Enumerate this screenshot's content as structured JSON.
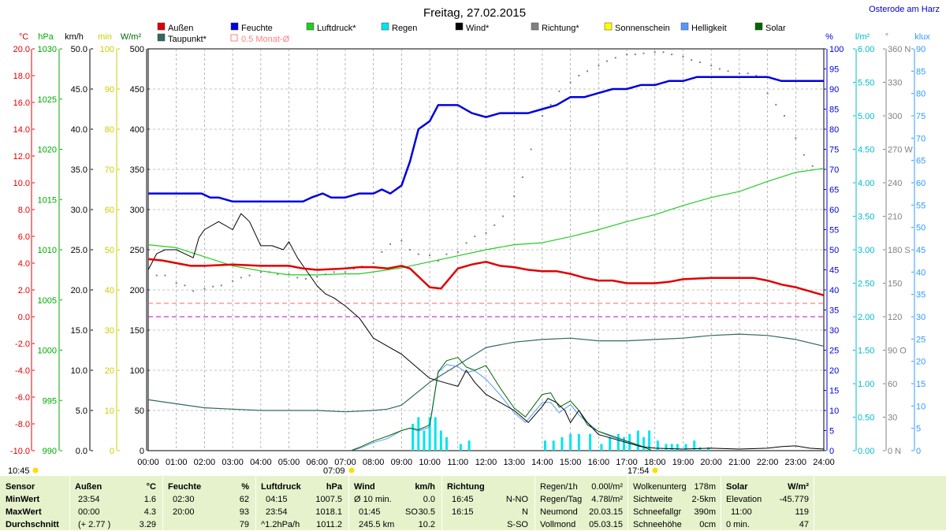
{
  "title": "Freitag, 27.02.2015",
  "location": "Osterode am Harz",
  "legend": [
    {
      "label": "Außen",
      "color": "#e00000"
    },
    {
      "label": "Feuchte",
      "color": "#0000e0"
    },
    {
      "label": "Luftdruck*",
      "color": "#22cc22"
    },
    {
      "label": "Regen",
      "color": "#00e5ee"
    },
    {
      "label": "Wind*",
      "color": "#000000"
    },
    {
      "label": "Richtung*",
      "color": "#808080"
    },
    {
      "label": "Sonnenschein",
      "color": "#ffff00"
    },
    {
      "label": "Helligkeit",
      "color": "#5599ff"
    },
    {
      "label": "Solar",
      "color": "#006600"
    },
    {
      "label": "Taupunkt*",
      "color": "#336666"
    },
    {
      "label": "0.5 Monat-Ø",
      "color": "#ff8080"
    }
  ],
  "axis_units": {
    "temp": "°C",
    "pressure": "hPa",
    "wind": "km/h",
    "sun": "min",
    "solar": "W/m²",
    "humidity": "%",
    "rain": "l/m²",
    "direction": "°",
    "brightness": "klux"
  },
  "time_marks": {
    "start": "10:45",
    "sunrise": "07:09",
    "sunset": "17:54"
  },
  "chart_data": {
    "type": "line",
    "title": "Freitag, 27.02.2015",
    "x_ticks": [
      "00:00",
      "01:00",
      "02:00",
      "03:00",
      "04:00",
      "05:00",
      "06:00",
      "07:00",
      "08:00",
      "09:00",
      "10:00",
      "11:00",
      "12:00",
      "13:00",
      "14:00",
      "15:00",
      "16:00",
      "17:00",
      "18:00",
      "19:00",
      "20:00",
      "21:00",
      "22:00",
      "23:00",
      "24:00"
    ],
    "axes": {
      "temp": {
        "ticks": [
          "20.0",
          "18.0",
          "16.0",
          "14.0",
          "12.0",
          "10.0",
          "8.0",
          "6.0",
          "4.0",
          "2.0",
          "0.0",
          "-2.0",
          "-4.0",
          "-6.0",
          "-8.0",
          "-10.0"
        ],
        "range": [
          -10,
          20
        ]
      },
      "pressure": {
        "ticks": [
          "1030",
          "1025",
          "1020",
          "1015",
          "1010",
          "1005",
          "1000",
          "995",
          "990"
        ],
        "range": [
          990,
          1030
        ]
      },
      "wind": {
        "ticks": [
          "50.0",
          "45.0",
          "40.0",
          "35.0",
          "30.0",
          "25.0",
          "20.0",
          "15.0",
          "10.0",
          "5.0",
          "0.0"
        ],
        "range": [
          0,
          50
        ]
      },
      "sun": {
        "ticks": [
          "100",
          "90",
          "80",
          "70",
          "60",
          "50",
          "40",
          "30",
          "20",
          "10",
          "0"
        ],
        "range": [
          0,
          100
        ]
      },
      "solar": {
        "ticks": [
          "500",
          "450",
          "400",
          "350",
          "300",
          "250",
          "200",
          "150",
          "100",
          "50",
          "0"
        ],
        "range": [
          0,
          500
        ]
      },
      "humidity": {
        "ticks": [
          "100",
          "95",
          "90",
          "85",
          "80",
          "75",
          "70",
          "65",
          "60",
          "55",
          "50",
          "45",
          "40",
          "35",
          "30",
          "25",
          "20",
          "15",
          "10",
          "5",
          "0"
        ],
        "range": [
          0,
          100
        ]
      },
      "rain": {
        "ticks": [
          "6.00",
          "5.50",
          "5.00",
          "4.50",
          "4.00",
          "3.50",
          "3.00",
          "2.50",
          "2.00",
          "1.50",
          "1.00",
          "0.50",
          "0.00"
        ],
        "range": [
          0,
          6
        ]
      },
      "direction": {
        "ticks": [
          "360 N",
          "330",
          "300",
          "270 W",
          "240",
          "210",
          "180 S",
          "150",
          "120",
          "90 O",
          "60",
          "30",
          "0 N"
        ],
        "range": [
          0,
          360
        ]
      },
      "brightness": {
        "ticks": [
          "90",
          "85",
          "80",
          "75",
          "70",
          "65",
          "60",
          "55",
          "50",
          "45",
          "40",
          "35",
          "30",
          "25",
          "20",
          "15",
          "10",
          "5",
          "0"
        ],
        "range": [
          0,
          90
        ]
      }
    },
    "series": [
      {
        "name": "Außen",
        "axis": "temp",
        "color": "#e00000",
        "width": 2.5,
        "x": [
          0,
          0.5,
          1,
          1.5,
          2,
          3,
          4,
          5,
          5.5,
          6,
          7,
          7.5,
          8,
          8.5,
          9,
          9.3,
          10,
          10.4,
          11,
          11.5,
          12,
          12.5,
          13,
          13.5,
          14,
          14.5,
          15,
          15.5,
          16,
          16.5,
          17,
          18,
          18.5,
          19,
          20,
          21,
          21.5,
          22,
          22.5,
          23,
          23.5,
          24
        ],
        "y": [
          4.3,
          4.2,
          4.0,
          3.8,
          3.8,
          3.9,
          3.8,
          3.8,
          3.6,
          3.5,
          3.6,
          3.7,
          3.7,
          3.6,
          3.8,
          3.6,
          2.2,
          2.1,
          3.6,
          3.9,
          4.1,
          3.8,
          3.7,
          3.5,
          3.4,
          3.4,
          3.2,
          2.9,
          2.7,
          2.7,
          2.5,
          2.5,
          2.6,
          2.8,
          2.9,
          2.9,
          2.9,
          2.7,
          2.4,
          2.2,
          1.9,
          1.6
        ]
      },
      {
        "name": "Feuchte",
        "axis": "humidity",
        "color": "#0000e0",
        "width": 2.5,
        "x": [
          0,
          1,
          1.9,
          2.2,
          2.5,
          3,
          4,
          5.5,
          5.8,
          6.2,
          6.5,
          7,
          7.5,
          8,
          8.3,
          8.6,
          9,
          9.3,
          9.6,
          10,
          10.3,
          11,
          11.5,
          12,
          12.5,
          13,
          13.5,
          14,
          14.5,
          15,
          15.5,
          16,
          16.5,
          17,
          17.5,
          18,
          18.5,
          19,
          19.5,
          20,
          20.5,
          21,
          21.5,
          22,
          22.5,
          23,
          23.5,
          24
        ],
        "y": [
          64,
          64,
          64,
          63,
          63,
          62,
          62,
          62,
          63,
          64,
          63,
          63,
          64,
          64,
          65,
          64,
          66,
          72,
          80,
          82,
          86,
          86,
          84,
          83,
          84,
          84,
          84,
          85,
          86,
          88,
          88,
          89,
          90,
          90,
          91,
          91,
          92,
          92,
          93,
          93,
          93,
          93,
          93,
          93,
          92,
          92,
          92,
          92
        ]
      },
      {
        "name": "Luftdruck*",
        "axis": "pressure",
        "color": "#22cc22",
        "width": 1.2,
        "x": [
          0,
          1,
          2,
          3,
          4,
          5,
          6,
          7,
          7.5,
          8,
          9,
          10,
          11,
          12,
          13,
          14,
          15,
          16,
          17,
          18,
          19,
          20,
          21,
          22,
          23,
          23.5,
          24
        ],
        "y": [
          1010.5,
          1010.2,
          1009.3,
          1008.4,
          1007.9,
          1007.5,
          1007.5,
          1007.6,
          1007.6,
          1007.8,
          1008.2,
          1008.8,
          1009.4,
          1010.0,
          1010.5,
          1010.7,
          1011.3,
          1012.0,
          1012.8,
          1013.5,
          1014.4,
          1015.2,
          1015.8,
          1016.8,
          1017.7,
          1017.9,
          1018.1
        ]
      },
      {
        "name": "Taupunkt*",
        "axis": "temp",
        "color": "#336666",
        "width": 1.2,
        "x": [
          0,
          1,
          2,
          3,
          4,
          5,
          6,
          7,
          8,
          8.5,
          9,
          10,
          11,
          12,
          13,
          14,
          15,
          16,
          17,
          18,
          19,
          20,
          21,
          22,
          23,
          24
        ],
        "y": [
          -6.2,
          -6.5,
          -6.8,
          -6.9,
          -7.0,
          -7.0,
          -7.0,
          -7.1,
          -7.0,
          -6.9,
          -6.6,
          -4.9,
          -3.6,
          -2.3,
          -1.9,
          -1.7,
          -1.6,
          -1.8,
          -1.8,
          -1.7,
          -1.6,
          -1.4,
          -1.3,
          -1.4,
          -1.7,
          -2.2
        ]
      },
      {
        "name": "Wind*",
        "axis": "wind",
        "color": "#000000",
        "width": 1,
        "x": [
          0,
          0.3,
          0.6,
          1,
          1.3,
          1.6,
          1.8,
          2,
          2.5,
          3,
          3.3,
          3.6,
          4,
          4.4,
          4.8,
          5,
          5.3,
          5.6,
          6,
          6.3,
          6.6,
          7,
          7.5,
          8,
          8.5,
          9,
          9.5,
          10,
          10.5,
          11,
          11.3,
          11.6,
          12,
          12.5,
          13,
          13.5,
          14,
          14.2,
          14.5,
          14.8,
          15,
          15.3,
          15.6,
          16,
          16.5,
          17,
          17.5,
          18,
          19,
          20,
          21,
          22,
          22.5,
          23,
          23.5,
          24
        ],
        "y": [
          22.5,
          24.5,
          25,
          25,
          24.5,
          24,
          26.5,
          27.5,
          28.5,
          27.5,
          29.5,
          28.5,
          25.5,
          25.5,
          25,
          26,
          24,
          22.5,
          20.5,
          19.5,
          19,
          18,
          16.5,
          14,
          13,
          12,
          10.5,
          9,
          8.5,
          8,
          10,
          8.5,
          7,
          6,
          5,
          3.5,
          5.5,
          6.5,
          6,
          5,
          3.5,
          5,
          3.5,
          2,
          1.5,
          1,
          0.5,
          0.3,
          0.2,
          0.3,
          0.2,
          0.3,
          0.5,
          0.6,
          0.3,
          0.2
        ]
      },
      {
        "name": "Solar",
        "axis": "solar",
        "color": "#006600",
        "width": 1,
        "x": [
          7.2,
          7.5,
          8,
          8.5,
          9,
          9.3,
          9.6,
          10,
          10.3,
          10.6,
          11,
          11.3,
          11.6,
          12,
          12.5,
          13,
          13.4,
          14,
          14.3,
          14.6,
          15,
          15.3,
          15.6,
          16,
          16.5,
          17,
          17.5,
          17.9
        ],
        "y": [
          0,
          4,
          12,
          18,
          25,
          28,
          26,
          32,
          98,
          112,
          116,
          104,
          100,
          106,
          78,
          53,
          42,
          70,
          72,
          54,
          62,
          50,
          32,
          24,
          18,
          12,
          6,
          0
        ]
      },
      {
        "name": "Helligkeit",
        "axis": "brightness",
        "color": "#5599ff",
        "width": 1,
        "x": [
          7.2,
          7.5,
          8,
          8.5,
          9,
          9.3,
          9.6,
          10,
          10.3,
          10.6,
          11,
          11.3,
          11.6,
          12,
          12.5,
          13,
          13.4,
          14,
          14.3,
          14.6,
          15,
          15.3,
          15.6,
          16,
          16.5,
          17,
          17.5,
          17.9
        ],
        "y": [
          0,
          0.5,
          1.8,
          2.7,
          4.5,
          5,
          4.4,
          5.3,
          17.5,
          19.3,
          18.8,
          17.5,
          17.9,
          16,
          12.5,
          8.5,
          6.3,
          10.8,
          10.8,
          8.5,
          10.3,
          8,
          6.3,
          4.3,
          3,
          2,
          1,
          0
        ]
      },
      {
        "name": "Regen",
        "axis": "rain",
        "color": "#00e5ee",
        "type": "bar",
        "x": [
          9.4,
          9.6,
          9.8,
          10,
          10.2,
          10.4,
          10.6,
          11.1,
          11.4,
          14.1,
          14.4,
          14.7,
          15,
          15.3,
          15.7,
          16.1,
          16.4,
          16.7,
          16.9,
          17.1,
          17.4,
          17.6,
          17.8,
          18.1,
          18.4,
          18.6,
          18.8,
          19.1,
          19.4,
          19.6,
          19.9
        ],
        "y": [
          0.4,
          0.5,
          0.3,
          0.5,
          0.5,
          0.3,
          0.2,
          0.1,
          0.15,
          0.15,
          0.15,
          0.2,
          0.25,
          0.25,
          0.25,
          0.1,
          0.2,
          0.25,
          0.2,
          0.25,
          0.3,
          0.2,
          0.3,
          0.15,
          0.1,
          0.1,
          0.1,
          0.1,
          0.15,
          0.05,
          0.05
        ]
      },
      {
        "name": "Richtung*",
        "axis": "direction",
        "color": "#808080",
        "type": "dots",
        "x": [
          0.3,
          0.6,
          1,
          1.3,
          1.6,
          2,
          2.3,
          2.6,
          3,
          3.3,
          3.6,
          4,
          4.3,
          4.6,
          5,
          5.3,
          5.6,
          6,
          6.3,
          6.6,
          7,
          7.3,
          7.6,
          8,
          8.3,
          8.6,
          9,
          9.3,
          9.6,
          10,
          10.3,
          10.6,
          11,
          11.3,
          11.6,
          12,
          12.3,
          12.6,
          13,
          13.3,
          13.6,
          14,
          14.3,
          14.6,
          15,
          15.3,
          15.6,
          16,
          16.3,
          16.6,
          17,
          17.3,
          17.6,
          18,
          18.3,
          18.6,
          19,
          19.3,
          19.6,
          20,
          20.3,
          20.6,
          21,
          21.3,
          21.6,
          22,
          22.3,
          22.6,
          23,
          23.3,
          23.6
        ],
        "y": [
          157,
          157,
          150,
          148,
          143,
          145,
          147,
          148,
          152,
          155,
          157,
          160,
          160,
          158,
          158,
          155,
          154,
          156,
          158,
          160,
          160,
          163,
          165,
          168,
          178,
          185,
          188,
          180,
          176,
          175,
          170,
          176,
          178,
          186,
          192,
          195,
          202,
          210,
          228,
          245,
          270,
          300,
          310,
          322,
          330,
          336,
          340,
          345,
          349,
          352,
          355,
          355,
          356,
          357,
          357,
          355,
          353,
          350,
          348,
          345,
          342,
          340,
          338,
          338,
          336,
          320,
          310,
          300,
          280,
          265,
          255
        ]
      }
    ],
    "reference_lines": [
      {
        "name": "0.5 Monat-Ø",
        "axis": "temp",
        "value": 1.0,
        "color": "#ff6666"
      },
      {
        "name": "0 °C",
        "axis": "temp",
        "value": 0.0,
        "color": "#cc00cc"
      }
    ]
  },
  "footer": {
    "sensor": {
      "h": "Sensor",
      "rows": [
        "MinWert",
        "MaxWert",
        "Durchschnitt"
      ]
    },
    "aussen": {
      "h": "Außen",
      "u": "°C",
      "a": [
        "23:54",
        "00:00",
        "(+ 2.77 )"
      ],
      "b": [
        "1.6",
        "4.3",
        "3.29"
      ]
    },
    "feuchte": {
      "h": "Feuchte",
      "u": "%",
      "a": [
        "02:30",
        "20:00",
        ""
      ],
      "b": [
        "62",
        "93",
        "79"
      ]
    },
    "luftdruck": {
      "h": "Luftdruck",
      "u": "hPa",
      "a": [
        "04:15",
        "23:54",
        "^1.2hPa/h"
      ],
      "b": [
        "1007.5",
        "1018.1",
        "1011.2"
      ]
    },
    "wind": {
      "h": "Wind",
      "u": "km/h",
      "a": [
        "Ø 10 min.",
        "01:45",
        "245.5 km"
      ],
      "m": [
        "",
        "SO",
        "S-SO"
      ],
      "b": [
        "0.0",
        "30.5",
        "10.2"
      ]
    },
    "richtung": {
      "h": "Richtung",
      "a": [
        "16:45",
        "16:15",
        ""
      ],
      "b": [
        "N-NO",
        "N",
        "S-SO"
      ]
    },
    "regen": {
      "a": [
        "Regen/1h",
        "Regen/Tag",
        "Neumond",
        "Vollmond"
      ],
      "b": [
        "0.00l/m²",
        "4.78l/m²",
        "20.03.15",
        "05.03.15"
      ]
    },
    "wolken": {
      "a": [
        "Wolkenunterg",
        "Sichtweite",
        "Schneefallgr",
        "Schneehöhe"
      ],
      "b": [
        "178m",
        "2-5km",
        "390m",
        "0cm"
      ]
    },
    "solar": {
      "h": "Solar",
      "u": "W/m²",
      "a": [
        "Elevation",
        "11:00",
        "0 min."
      ],
      "b": [
        "-45.779",
        "119",
        "47"
      ]
    }
  }
}
